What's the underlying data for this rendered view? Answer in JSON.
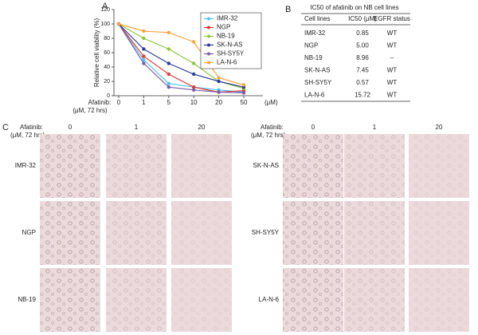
{
  "panel_labels": [
    "A",
    "B",
    "C"
  ],
  "chart_data": {
    "type": "line",
    "ylabel": "Relative cell viability (%)",
    "x_prefix": [
      "Afatinib:",
      "(μM, 72 hrs)"
    ],
    "x_unit": "(μM)",
    "categories": [
      "0",
      "1",
      "5",
      "10",
      "20",
      "50"
    ],
    "ylim": [
      0,
      120
    ],
    "yticks": [
      0,
      20,
      40,
      60,
      80,
      100,
      120
    ],
    "legend": "upper right",
    "series": [
      {
        "name": "IMR-32",
        "color": "#4fc3e8",
        "values": [
          100,
          50,
          17,
          12,
          8,
          5
        ]
      },
      {
        "name": "NGP",
        "color": "#e03a3a",
        "values": [
          100,
          55,
          30,
          12,
          5,
          7
        ]
      },
      {
        "name": "NB-19",
        "color": "#8cc63f",
        "values": [
          100,
          80,
          65,
          45,
          20,
          10
        ]
      },
      {
        "name": "SK-N-AS",
        "color": "#2e3f99",
        "values": [
          100,
          65,
          45,
          30,
          20,
          12
        ]
      },
      {
        "name": "SH-SY5Y",
        "color": "#7b5fa6",
        "values": [
          100,
          45,
          12,
          8,
          5,
          4
        ]
      },
      {
        "name": "LA-N-6",
        "color": "#f7a543",
        "values": [
          100,
          90,
          88,
          75,
          25,
          15
        ]
      }
    ]
  },
  "table": {
    "title": "IC50 of afatinib on NB cell lines",
    "header": [
      "Cell lines",
      "IC50 (μM)",
      "EGFR status"
    ],
    "rows": [
      [
        "IMR-32",
        "0.85",
        "WT"
      ],
      [
        "NGP",
        "5.00",
        "WT"
      ],
      [
        "NB-19",
        "8.96",
        "–"
      ],
      [
        "SK-N-AS",
        "7.45",
        "WT"
      ],
      [
        "SH-SY5Y",
        "0.57",
        "WT"
      ],
      [
        "LA-N-6",
        "15.72",
        "WT"
      ]
    ]
  },
  "micrographs": {
    "header": [
      "Afatinib:",
      "(μM, 72 hrs)"
    ],
    "doses": [
      "0",
      "1",
      "20"
    ],
    "groups": [
      [
        "IMR-32",
        "NGP",
        "NB-19"
      ],
      [
        "SK-N-AS",
        "SH-SY5Y",
        "LA-N-6"
      ]
    ]
  }
}
